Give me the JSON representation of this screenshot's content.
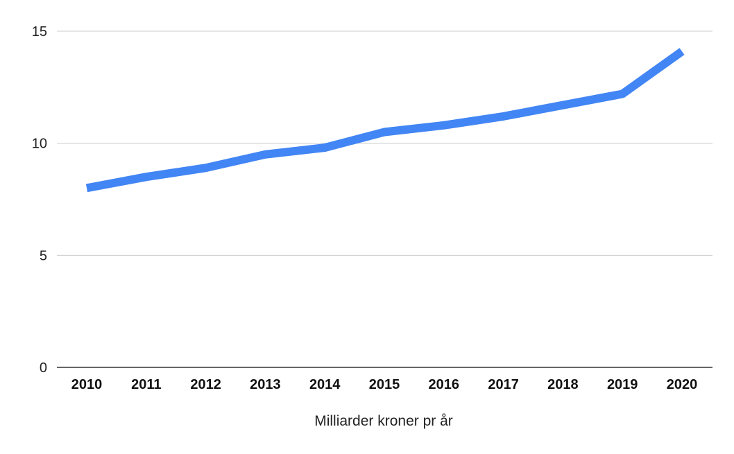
{
  "chart_data": {
    "type": "line",
    "title": "",
    "xlabel": "Milliarder kroner pr år",
    "ylabel": "",
    "ylim": [
      0,
      15
    ],
    "yticks": [
      0,
      5,
      10,
      15
    ],
    "grid": true,
    "legend": "none",
    "categories": [
      "2010",
      "2011",
      "2012",
      "2013",
      "2014",
      "2015",
      "2016",
      "2017",
      "2018",
      "2019",
      "2020"
    ],
    "series": [
      {
        "values": [
          8.0,
          8.5,
          8.9,
          9.5,
          9.8,
          10.5,
          10.8,
          11.2,
          11.7,
          12.2,
          14.1
        ],
        "color": "#4285f4"
      }
    ],
    "colors": {
      "grid": "#cccccc",
      "axis": "#333333"
    }
  }
}
